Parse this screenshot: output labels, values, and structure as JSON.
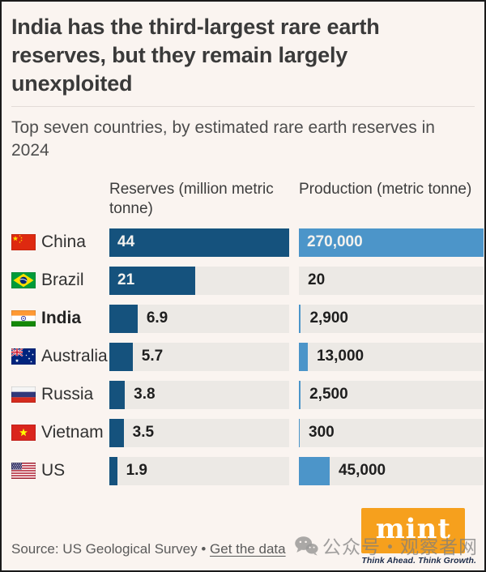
{
  "header": {
    "title": "India has the third-largest rare earth reserves, but they remain largely unexploited",
    "subtitle": "Top seven countries, by estimated rare earth reserves in 2024"
  },
  "chart_data": {
    "type": "bar",
    "orientation": "horizontal",
    "grid": false,
    "columns": [
      {
        "key": "reserves",
        "label": "Reserves (million metric tonne)",
        "max": 44,
        "bar_color": "#15527d"
      },
      {
        "key": "production",
        "label": "Production (metric tonne)",
        "max": 270000,
        "bar_color": "#4c95c9"
      }
    ],
    "rows": [
      {
        "id": "china",
        "country": "China",
        "flag": "flag-china",
        "bold": false,
        "reserves": 44,
        "reserves_label": "44",
        "production": 270000,
        "production_label": "270,000"
      },
      {
        "id": "brazil",
        "country": "Brazil",
        "flag": "flag-brazil",
        "bold": false,
        "reserves": 21,
        "reserves_label": "21",
        "production": 20,
        "production_label": "20"
      },
      {
        "id": "india",
        "country": "India",
        "flag": "flag-india",
        "bold": true,
        "reserves": 6.9,
        "reserves_label": "6.9",
        "production": 2900,
        "production_label": "2,900"
      },
      {
        "id": "australia",
        "country": "Australia",
        "flag": "flag-australia",
        "bold": false,
        "reserves": 5.7,
        "reserves_label": "5.7",
        "production": 13000,
        "production_label": "13,000"
      },
      {
        "id": "russia",
        "country": "Russia",
        "flag": "flag-russia",
        "bold": false,
        "reserves": 3.8,
        "reserves_label": "3.8",
        "production": 2500,
        "production_label": "2,500"
      },
      {
        "id": "vietnam",
        "country": "Vietnam",
        "flag": "flag-vietnam",
        "bold": false,
        "reserves": 3.5,
        "reserves_label": "3.5",
        "production": 300,
        "production_label": "300"
      },
      {
        "id": "us",
        "country": "US",
        "flag": "flag-us",
        "bold": false,
        "reserves": 1.9,
        "reserves_label": "1.9",
        "production": 45000,
        "production_label": "45,000"
      }
    ]
  },
  "footer": {
    "source_prefix": "Source: US Geological Survey",
    "separator": " • ",
    "link_label": "Get the data",
    "brand": {
      "name": "mint",
      "tagline": "Think Ahead. Think Growth.",
      "color": "#f6a01d"
    }
  },
  "watermark": {
    "icon": "wechat-icon",
    "text": "公众号・观察者网"
  },
  "colors": {
    "background": "#faf4f0",
    "track": "#ece9e5",
    "reserves_bar": "#15527d",
    "production_bar": "#4c95c9",
    "title_text": "#3a3a3a",
    "value_inside": "#f4f2ee",
    "value_outside": "#1e1e1e"
  }
}
